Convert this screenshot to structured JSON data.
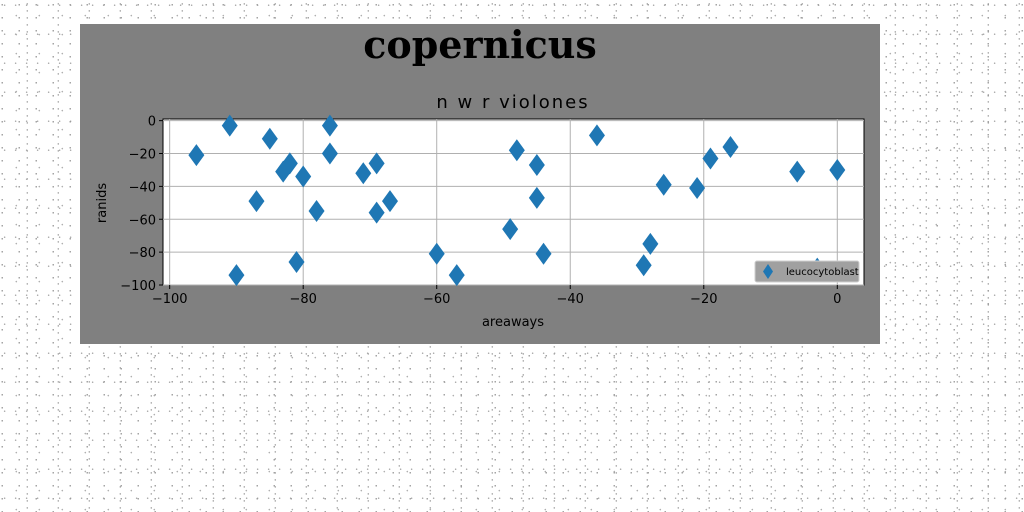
{
  "figure_title": "copernicus",
  "chart_data": {
    "type": "scatter",
    "title": "n w r violones",
    "xlabel": "areaways",
    "ylabel": "ranids",
    "xlim": [
      -101,
      4
    ],
    "ylim": [
      -100,
      1
    ],
    "xticks": [
      -100,
      -80,
      -60,
      -40,
      -20,
      0
    ],
    "yticks": [
      0,
      -20,
      -40,
      -60,
      -80,
      -100
    ],
    "grid": true,
    "legend_position": "lower-right",
    "series": [
      {
        "name": "leucocytoblast",
        "color": "#1f77b4",
        "marker": "diamond",
        "points": [
          {
            "x": -96,
            "y": -21
          },
          {
            "x": -91,
            "y": -3
          },
          {
            "x": -90,
            "y": -94
          },
          {
            "x": -87,
            "y": -49
          },
          {
            "x": -85,
            "y": -11
          },
          {
            "x": -83,
            "y": -31
          },
          {
            "x": -82,
            "y": -26
          },
          {
            "x": -81,
            "y": -86
          },
          {
            "x": -80,
            "y": -34
          },
          {
            "x": -78,
            "y": -55
          },
          {
            "x": -76,
            "y": -3
          },
          {
            "x": -76,
            "y": -20
          },
          {
            "x": -71,
            "y": -32
          },
          {
            "x": -69,
            "y": -26
          },
          {
            "x": -69,
            "y": -56
          },
          {
            "x": -67,
            "y": -49
          },
          {
            "x": -60,
            "y": -81
          },
          {
            "x": -57,
            "y": -94
          },
          {
            "x": -49,
            "y": -66
          },
          {
            "x": -48,
            "y": -18
          },
          {
            "x": -45,
            "y": -27
          },
          {
            "x": -45,
            "y": -47
          },
          {
            "x": -44,
            "y": -81
          },
          {
            "x": -36,
            "y": -9
          },
          {
            "x": -29,
            "y": -88
          },
          {
            "x": -28,
            "y": -75
          },
          {
            "x": -26,
            "y": -39
          },
          {
            "x": -21,
            "y": -41
          },
          {
            "x": -19,
            "y": -23
          },
          {
            "x": -16,
            "y": -16
          },
          {
            "x": -6,
            "y": -31
          },
          {
            "x": -3,
            "y": -90
          },
          {
            "x": 0,
            "y": -30
          }
        ]
      }
    ]
  }
}
